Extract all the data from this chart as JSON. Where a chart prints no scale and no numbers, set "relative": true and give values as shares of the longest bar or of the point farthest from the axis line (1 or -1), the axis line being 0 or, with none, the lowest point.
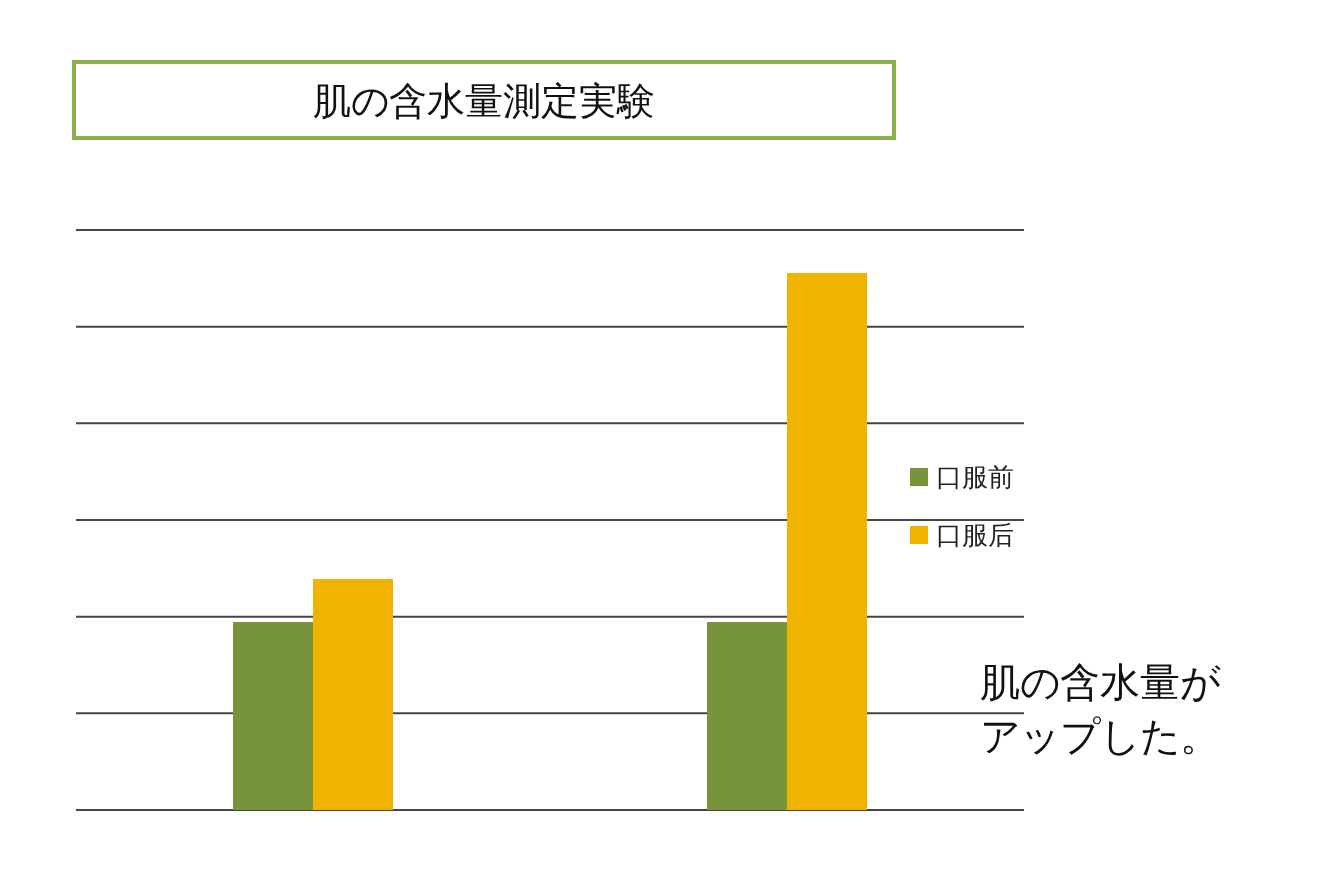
{
  "chart_data": {
    "type": "bar",
    "relative": true,
    "title": "肌の含水量測定実験",
    "categories": [
      null,
      null
    ],
    "series": [
      {
        "name": "口服前",
        "color": "#77933c",
        "values": [
          0.35,
          0.35
        ]
      },
      {
        "name": "口服后",
        "color": "#f0b400",
        "values": [
          0.43,
          1
        ]
      }
    ],
    "grid": "y",
    "legend": "right",
    "annotations": [
      "肌の含水量がアップした。"
    ]
  }
}
